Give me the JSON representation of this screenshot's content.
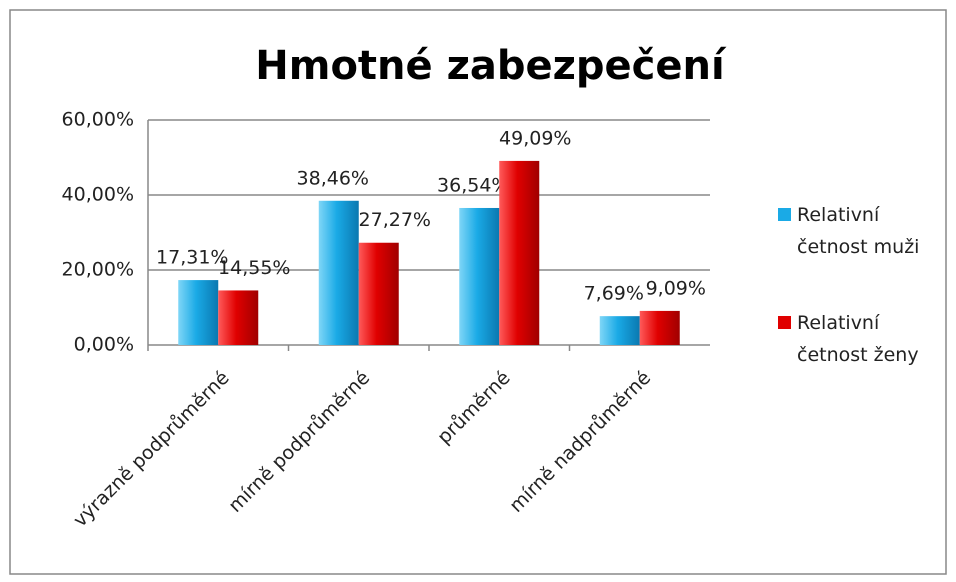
{
  "chart_data": {
    "type": "bar",
    "title": "Hmotné zabezpečení",
    "categories": [
      "výrazně podprůměrné",
      "mírně podprůměrné",
      "průměrné",
      "mírně nadprůměrné"
    ],
    "series": [
      {
        "name": "Relativní četnost muži",
        "color": "#1aaae6",
        "values": [
          17.31,
          38.46,
          36.54,
          7.69
        ],
        "value_labels": [
          "17,31%",
          "38,46%",
          "36,54%",
          "7,69%"
        ]
      },
      {
        "name": "Relativní četnost ženy",
        "color": "#e00000",
        "values": [
          14.55,
          27.27,
          49.09,
          9.09
        ],
        "value_labels": [
          "14,55%",
          "27,27%",
          "49,09%",
          "9,09%"
        ]
      }
    ],
    "ylim": [
      0,
      60
    ],
    "yticks": [
      {
        "value": 0,
        "label": "0,00%"
      },
      {
        "value": 20,
        "label": "20,00%"
      },
      {
        "value": 40,
        "label": "40,00%"
      },
      {
        "value": 60,
        "label": "60,00%"
      }
    ],
    "grid": true,
    "legend": "right"
  }
}
